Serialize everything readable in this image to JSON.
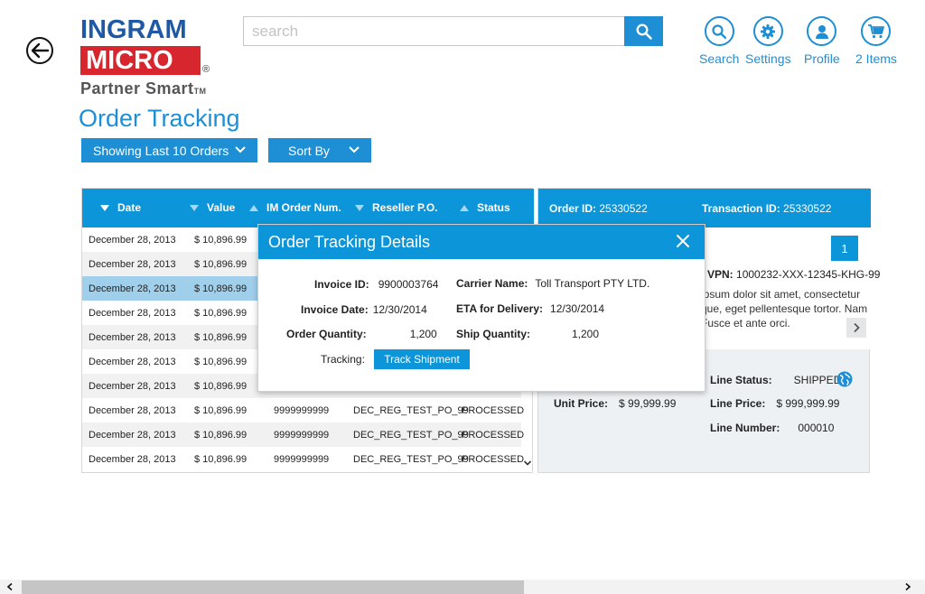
{
  "logo": {
    "line1": "INGRAM",
    "line2": "MICRO",
    "reg": "®",
    "tagline": "Partner Smart",
    "tm": "TM"
  },
  "search": {
    "placeholder": "search"
  },
  "nav": [
    {
      "label": "Search",
      "icon": "search-icon"
    },
    {
      "label": "Settings",
      "icon": "gear-icon"
    },
    {
      "label": "Profile",
      "icon": "user-icon"
    },
    {
      "label": "2 Items",
      "icon": "cart-icon"
    }
  ],
  "page_title": "Order Tracking",
  "filters": {
    "showing": "Showing Last 10 Orders",
    "sort": "Sort By"
  },
  "table": {
    "columns": [
      "Date",
      "Value",
      "IM Order Num.",
      "Reseller P.O.",
      "Status"
    ],
    "rows": [
      {
        "date": "December 28, 2013",
        "value": "$ 10,896.99",
        "order": "",
        "po": "",
        "status": ""
      },
      {
        "date": "December 28, 2013",
        "value": "$ 10,896.99",
        "order": "",
        "po": "",
        "status": ""
      },
      {
        "date": "December 28, 2013",
        "value": "$ 10,896.99",
        "order": "",
        "po": "",
        "status": ""
      },
      {
        "date": "December 28, 2013",
        "value": "$ 10,896.99",
        "order": "",
        "po": "",
        "status": ""
      },
      {
        "date": "December 28, 2013",
        "value": "$ 10,896.99",
        "order": "",
        "po": "",
        "status": ""
      },
      {
        "date": "December 28, 2013",
        "value": "$ 10,896.99",
        "order": "",
        "po": "",
        "status": ""
      },
      {
        "date": "December 28, 2013",
        "value": "$ 10,896.99",
        "order": "",
        "po": "",
        "status": ""
      },
      {
        "date": "December 28, 2013",
        "value": "$ 10,896.99",
        "order": "9999999999",
        "po": "DEC_REG_TEST_PO_99",
        "status": "PROCESSED"
      },
      {
        "date": "December 28, 2013",
        "value": "$ 10,896.99",
        "order": "9999999999",
        "po": "DEC_REG_TEST_PO_99",
        "status": "PROCESSED"
      },
      {
        "date": "December 28, 2013",
        "value": "$ 10,896.99",
        "order": "9999999999",
        "po": "DEC_REG_TEST_PO_99",
        "status": "PROCESSED"
      }
    ]
  },
  "detail": {
    "order_id_label": "Order ID:",
    "order_id": "25330522",
    "transaction_id_label": "Transaction ID:",
    "transaction_id": "25330522",
    "page": "1",
    "vpn_label": "VPN:",
    "vpn": "1000232-XXX-12345-KHG-99",
    "desc_lines": [
      "ipsum dolor sit amet, consectetur",
      "que, eget pellentesque tortor. Nam",
      "Fusce et ante orci."
    ],
    "unit_price_label": "Unit Price:",
    "unit_price": "$ 99,999.99",
    "line_status_label": "Line Status:",
    "line_status": "SHIPPED",
    "line_price_label": "Line Price:",
    "line_price": "$ 999,999.99",
    "line_number_label": "Line Number:",
    "line_number": "000010"
  },
  "modal": {
    "title": "Order Tracking Details",
    "invoice_id_label": "Invoice ID:",
    "invoice_id": "9900003764",
    "carrier_label": "Carrier Name:",
    "carrier": "Toll Transport PTY LTD.",
    "invoice_date_label": "Invoice Date:",
    "invoice_date": "12/30/2014",
    "eta_label": "ETA for Delivery:",
    "eta": "12/30/2014",
    "order_qty_label": "Order Quantity:",
    "order_qty": "1,200",
    "ship_qty_label": "Ship Quantity:",
    "ship_qty": "1,200",
    "tracking_label": "Tracking:",
    "track_button": "Track Shipment"
  },
  "colors": {
    "accent": "#1e8fd5",
    "header": "#0c95d8",
    "selected_row": "#9fcfea",
    "brand_red": "#d8262e",
    "brand_blue": "#1f59a6"
  }
}
